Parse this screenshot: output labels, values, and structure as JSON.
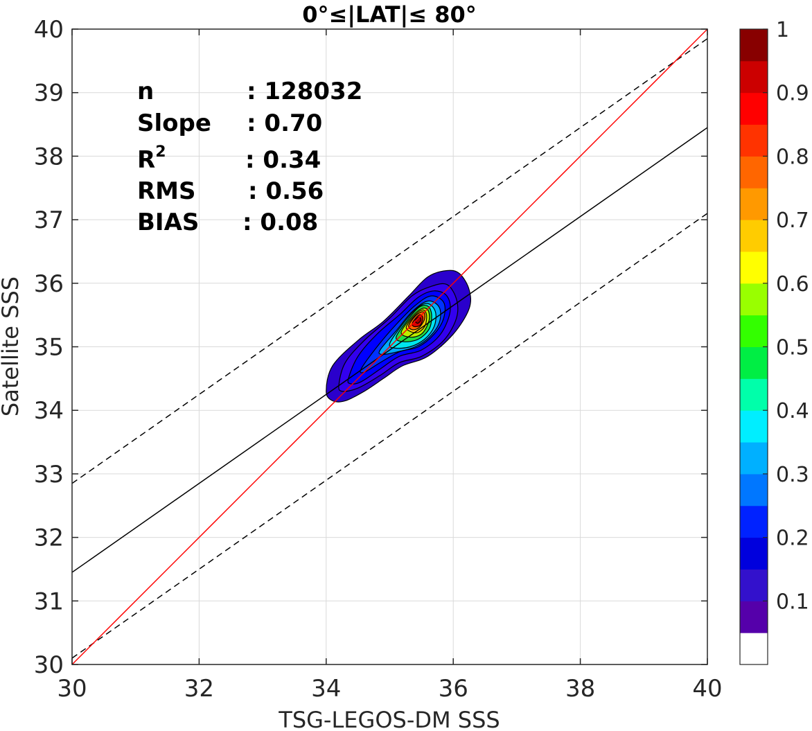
{
  "chart_data": {
    "type": "contour",
    "title": "0°≤|LAT|≤ 80°",
    "xlabel": "TSG-LEGOS-DM SSS",
    "ylabel": "Satellite SSS",
    "xlim": [
      30,
      40
    ],
    "ylim": [
      30,
      40
    ],
    "xticks": [
      "30",
      "32",
      "34",
      "36",
      "38",
      "40"
    ],
    "yticks": [
      "30",
      "31",
      "32",
      "33",
      "34",
      "35",
      "36",
      "37",
      "38",
      "39",
      "40"
    ],
    "grid": true,
    "stats": {
      "n_label": "n",
      "n_value": ": 128032",
      "slope_label": "Slope",
      "slope_value": ": 0.70",
      "r2_label": "R",
      "r2_sup": "2",
      "r2_value": ": 0.34",
      "rms_label": "RMS",
      "rms_value": ": 0.56",
      "bias_label": "BIAS",
      "bias_value": ": 0.08"
    },
    "lines": {
      "identity": {
        "x": [
          30,
          40
        ],
        "y": [
          30,
          40
        ],
        "color": "#ff0000",
        "style": "solid"
      },
      "regression": {
        "x": [
          30,
          40
        ],
        "y": [
          31.45,
          38.45
        ],
        "color": "#000000",
        "style": "solid"
      },
      "upper_bound": {
        "x": [
          30,
          40
        ],
        "y": [
          32.85,
          39.85
        ],
        "color": "#000000",
        "style": "dashed"
      },
      "lower_bound": {
        "x": [
          30,
          40
        ],
        "y": [
          30.1,
          37.1
        ],
        "color": "#000000",
        "style": "dashed"
      }
    },
    "density_peak": {
      "x": 35.45,
      "y": 35.42
    },
    "contour_levels": [
      {
        "level": 0.05,
        "color": "#2a00cc",
        "x": [
          34.0,
          34.1,
          34.5,
          34.9,
          35.3,
          35.6,
          35.9,
          36.1,
          36.25,
          36.25,
          36.0,
          35.6,
          35.2,
          34.9,
          34.6,
          34.3,
          34.1
        ],
        "y": [
          34.3,
          34.7,
          35.1,
          35.4,
          35.8,
          36.1,
          36.2,
          36.15,
          35.9,
          35.6,
          35.2,
          34.85,
          34.7,
          34.5,
          34.3,
          34.15,
          34.15
        ]
      },
      {
        "level": 0.1,
        "color": "#3300ee",
        "x": [
          34.2,
          34.3,
          34.6,
          35.0,
          35.35,
          35.65,
          35.9,
          36.05,
          36.05,
          35.85,
          35.5,
          35.15,
          34.85,
          34.5,
          34.25
        ],
        "y": [
          34.4,
          34.75,
          35.1,
          35.45,
          35.8,
          35.95,
          35.98,
          35.75,
          35.45,
          35.1,
          34.85,
          34.75,
          34.55,
          34.35,
          34.3
        ]
      },
      {
        "level": 0.15,
        "color": "#0000ff",
        "x": [
          34.35,
          34.5,
          34.8,
          35.15,
          35.45,
          35.7,
          35.9,
          35.95,
          35.8,
          35.5,
          35.15,
          34.85,
          34.55,
          34.38
        ],
        "y": [
          34.5,
          34.85,
          35.2,
          35.5,
          35.78,
          35.88,
          35.8,
          35.55,
          35.2,
          34.95,
          34.85,
          34.65,
          34.45,
          34.42
        ]
      },
      {
        "level": 0.2,
        "color": "#0033ff",
        "x": [
          34.55,
          34.8,
          35.1,
          35.4,
          35.65,
          35.85,
          35.85,
          35.7,
          35.45,
          35.15,
          34.85,
          34.6
        ],
        "y": [
          34.65,
          35.0,
          35.35,
          35.65,
          35.8,
          35.7,
          35.45,
          35.2,
          35.0,
          34.92,
          34.75,
          34.6
        ]
      },
      {
        "level": 0.3,
        "color": "#00a8ff",
        "x": [
          34.85,
          35.1,
          35.35,
          35.6,
          35.78,
          35.78,
          35.62,
          35.4,
          35.12,
          34.88
        ],
        "y": [
          34.95,
          35.25,
          35.55,
          35.72,
          35.62,
          35.38,
          35.15,
          35.0,
          34.92,
          34.88
        ]
      },
      {
        "level": 0.4,
        "color": "#00e5ee",
        "x": [
          35.0,
          35.2,
          35.42,
          35.6,
          35.72,
          35.7,
          35.55,
          35.32,
          35.08
        ],
        "y": [
          35.05,
          35.35,
          35.6,
          35.68,
          35.55,
          35.32,
          35.12,
          35.0,
          34.98
        ]
      },
      {
        "level": 0.5,
        "color": "#22dd44",
        "x": [
          35.1,
          35.28,
          35.46,
          35.6,
          35.66,
          35.62,
          35.45,
          35.22
        ],
        "y": [
          35.15,
          35.42,
          35.62,
          35.64,
          35.5,
          35.28,
          35.12,
          35.08
        ]
      },
      {
        "level": 0.6,
        "color": "#bbee00",
        "x": [
          35.18,
          35.34,
          35.5,
          35.6,
          35.62,
          35.52,
          35.35
        ],
        "y": [
          35.22,
          35.46,
          35.6,
          35.58,
          35.42,
          35.22,
          35.15
        ]
      },
      {
        "level": 0.7,
        "color": "#ffcc00",
        "x": [
          35.26,
          35.4,
          35.52,
          35.58,
          35.55,
          35.42
        ],
        "y": [
          35.3,
          35.5,
          35.58,
          35.5,
          35.32,
          35.22
        ]
      },
      {
        "level": 0.8,
        "color": "#ff6600",
        "x": [
          35.3,
          35.42,
          35.53,
          35.55,
          35.46,
          35.35
        ],
        "y": [
          35.34,
          35.5,
          35.55,
          35.44,
          35.3,
          35.27
        ]
      },
      {
        "level": 0.9,
        "color": "#dd0000",
        "x": [
          35.36,
          35.46,
          35.52,
          35.48,
          35.38
        ],
        "y": [
          35.38,
          35.5,
          35.46,
          35.34,
          35.32
        ]
      },
      {
        "level": 0.95,
        "color": "#a00000",
        "x": [
          35.4,
          35.46,
          35.49,
          35.44
        ],
        "y": [
          35.41,
          35.47,
          35.42,
          35.37
        ]
      }
    ],
    "colorbar": {
      "ticks": [
        "0.1",
        "0.2",
        "0.3",
        "0.4",
        "0.5",
        "0.6",
        "0.7",
        "0.8",
        "0.9",
        "1"
      ],
      "tick_values": [
        0.1,
        0.2,
        0.3,
        0.4,
        0.5,
        0.6,
        0.7,
        0.8,
        0.9,
        1.0
      ],
      "range": [
        0,
        1
      ],
      "colors": [
        "#ffffff",
        "#5500aa",
        "#3311cc",
        "#0000dd",
        "#0022ff",
        "#0077ff",
        "#00b0ff",
        "#00eeff",
        "#00ffaa",
        "#00ee44",
        "#33ff00",
        "#99ff00",
        "#ffff00",
        "#ffcc00",
        "#ff9900",
        "#ff6600",
        "#ff3300",
        "#ff0000",
        "#cc0000",
        "#880000"
      ]
    }
  }
}
